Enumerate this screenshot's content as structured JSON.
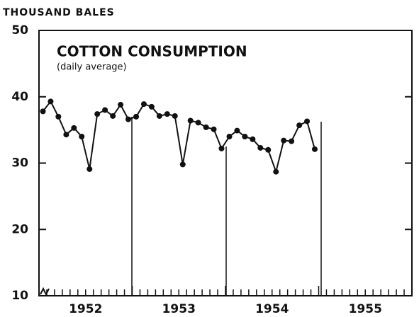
{
  "chart_data": {
    "type": "line",
    "title": "COTTON CONSUMPTION",
    "subtitle": "(daily average)",
    "y_label": "THOUSAND BALES",
    "x": [
      1952.042,
      1952.125,
      1952.208,
      1952.292,
      1952.375,
      1952.458,
      1952.542,
      1952.625,
      1952.708,
      1952.792,
      1952.875,
      1952.958,
      1953.042,
      1953.125,
      1953.208,
      1953.292,
      1953.375,
      1953.458,
      1953.542,
      1953.625,
      1953.708,
      1953.792,
      1953.875,
      1953.958,
      1954.042,
      1954.125,
      1954.208,
      1954.292,
      1954.375,
      1954.458,
      1954.542,
      1954.625,
      1954.708,
      1954.792,
      1954.875,
      1954.958
    ],
    "values": [
      37.8,
      39.3,
      37.0,
      34.3,
      35.3,
      34.0,
      29.1,
      37.4,
      38.0,
      37.1,
      38.8,
      36.6,
      37.0,
      38.9,
      38.5,
      37.1,
      37.4,
      37.1,
      29.8,
      36.4,
      36.1,
      35.4,
      35.1,
      32.2,
      34.0,
      34.9,
      34.0,
      33.6,
      32.3,
      32.0,
      28.7,
      33.4,
      33.3,
      35.7,
      36.3,
      32.1
    ],
    "color": "#111111",
    "xlim": [
      1952,
      1956
    ],
    "xticks": [
      {
        "value": 1952.5,
        "label": "1952"
      },
      {
        "value": 1953.5,
        "label": "1953"
      },
      {
        "value": 1954.5,
        "label": "1954"
      },
      {
        "value": 1955.5,
        "label": "1955"
      }
    ],
    "ylim": [
      10,
      50
    ],
    "yticks": [
      10,
      20,
      30,
      40,
      50
    ]
  }
}
